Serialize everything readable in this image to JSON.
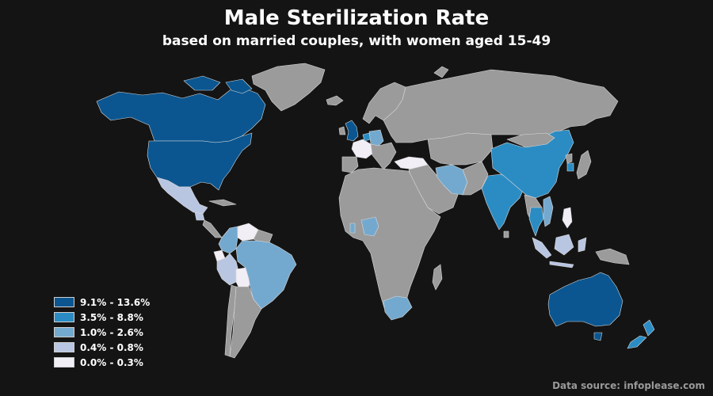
{
  "title": "Male Sterilization Rate",
  "subtitle": "based on married couples, with women aged 15-49",
  "source": "Data source: infoplease.com",
  "colors": {
    "background": "#141414",
    "no_data": "#9b9b9b",
    "border": "#d8d8d8"
  },
  "legend": [
    {
      "label": "9.1% - 13.6%",
      "color": "#0b5690"
    },
    {
      "label": "3.5% - 8.8%",
      "color": "#2b8cc4"
    },
    {
      "label": "1.0% - 2.6%",
      "color": "#74a9cf"
    },
    {
      "label": "0.4% - 0.8%",
      "color": "#b9c6e2"
    },
    {
      "label": "0.0% - 0.3%",
      "color": "#f1eef6"
    }
  ],
  "map_data": {
    "type": "choropleth",
    "regions": [
      {
        "name": "United States",
        "bin": 0
      },
      {
        "name": "Canada",
        "bin": 0
      },
      {
        "name": "United Kingdom",
        "bin": 0
      },
      {
        "name": "Australia",
        "bin": 0
      },
      {
        "name": "New Zealand",
        "bin": 1
      },
      {
        "name": "China",
        "bin": 1
      },
      {
        "name": "India",
        "bin": 1
      },
      {
        "name": "South Korea",
        "bin": 1
      },
      {
        "name": "Thailand",
        "bin": 1
      },
      {
        "name": "Netherlands",
        "bin": 1
      },
      {
        "name": "Brazil",
        "bin": 2
      },
      {
        "name": "Colombia",
        "bin": 2
      },
      {
        "name": "Iran",
        "bin": 2
      },
      {
        "name": "South Africa",
        "bin": 2
      },
      {
        "name": "Nigeria",
        "bin": 2
      },
      {
        "name": "Vietnam",
        "bin": 2
      },
      {
        "name": "Germany",
        "bin": 2
      },
      {
        "name": "Mexico",
        "bin": 3
      },
      {
        "name": "Peru",
        "bin": 3
      },
      {
        "name": "Indonesia",
        "bin": 3
      },
      {
        "name": "Guatemala",
        "bin": 3
      },
      {
        "name": "Venezuela",
        "bin": 4
      },
      {
        "name": "Ecuador",
        "bin": 4
      },
      {
        "name": "Bolivia",
        "bin": 4
      },
      {
        "name": "France",
        "bin": 4
      },
      {
        "name": "Turkey",
        "bin": 4
      },
      {
        "name": "Philippines",
        "bin": 4
      }
    ]
  }
}
